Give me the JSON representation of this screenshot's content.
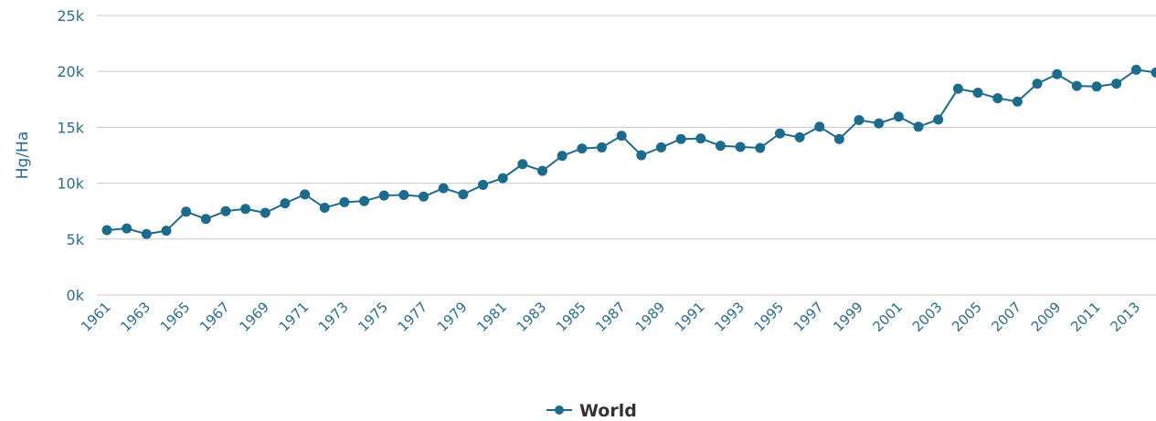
{
  "chart_data": {
    "type": "line",
    "title": "",
    "xlabel": "",
    "ylabel": "Hg/Ha",
    "ylim": [
      0,
      25000
    ],
    "yticks": [
      {
        "value": 0,
        "label": "0k"
      },
      {
        "value": 5000,
        "label": "5k"
      },
      {
        "value": 10000,
        "label": "10k"
      },
      {
        "value": 15000,
        "label": "15k"
      },
      {
        "value": 20000,
        "label": "20k"
      },
      {
        "value": 25000,
        "label": "25k"
      }
    ],
    "xtick_labels": [
      "1961",
      "1963",
      "1965",
      "1967",
      "1969",
      "1971",
      "1973",
      "1975",
      "1977",
      "1979",
      "1981",
      "1983",
      "1985",
      "1987",
      "1989",
      "1991",
      "1993",
      "1995",
      "1997",
      "1999",
      "2001",
      "2003",
      "2005",
      "2007",
      "2009",
      "2011",
      "2013"
    ],
    "x": [
      1961,
      1962,
      1963,
      1964,
      1965,
      1966,
      1967,
      1968,
      1969,
      1970,
      1971,
      1972,
      1973,
      1974,
      1975,
      1976,
      1977,
      1978,
      1979,
      1980,
      1981,
      1982,
      1983,
      1984,
      1985,
      1986,
      1987,
      1988,
      1989,
      1990,
      1991,
      1992,
      1993,
      1994,
      1995,
      1996,
      1997,
      1998,
      1999,
      2000,
      2001,
      2002,
      2003,
      2004,
      2005,
      2006,
      2007,
      2008,
      2009,
      2010,
      2011,
      2012,
      2013,
      2014
    ],
    "grid": true,
    "legend_position": "bottom-center",
    "series": [
      {
        "name": "World",
        "color": "#1d6b8c",
        "values": [
          5800,
          5950,
          5450,
          5750,
          7450,
          6800,
          7500,
          7700,
          7350,
          8200,
          9000,
          7800,
          8300,
          8400,
          8900,
          8950,
          8800,
          9550,
          9000,
          9850,
          10450,
          11700,
          11100,
          12450,
          13100,
          13200,
          14250,
          12500,
          13200,
          13950,
          14000,
          13350,
          13250,
          13150,
          14450,
          14100,
          15050,
          13950,
          15650,
          15350,
          15950,
          15050,
          15700,
          18450,
          18100,
          17600,
          17300,
          18900,
          19750,
          18700,
          18650,
          18900,
          20150,
          19900
        ]
      }
    ]
  }
}
